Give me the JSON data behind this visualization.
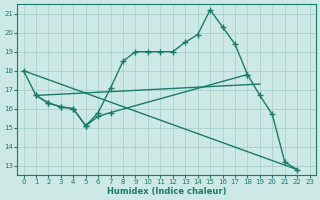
{
  "xlabel": "Humidex (Indice chaleur)",
  "bg_color": "#cce9e5",
  "line_color": "#1a7a6e",
  "grid_color": "#b8d8d4",
  "xlim": [
    -0.5,
    23.5
  ],
  "ylim": [
    12.5,
    21.5
  ],
  "yticks": [
    13,
    14,
    15,
    16,
    17,
    18,
    19,
    20,
    21
  ],
  "xticks": [
    0,
    1,
    2,
    3,
    4,
    5,
    6,
    7,
    8,
    9,
    10,
    11,
    12,
    13,
    14,
    15,
    16,
    17,
    18,
    19,
    20,
    21,
    22,
    23
  ],
  "curve1_x": [
    0,
    1,
    2,
    3,
    4,
    5,
    6,
    7,
    8,
    9,
    10,
    11,
    12,
    13,
    14,
    15,
    16,
    17,
    18,
    19,
    20,
    21,
    22
  ],
  "curve1_y": [
    18.0,
    16.7,
    16.3,
    16.1,
    16.0,
    15.1,
    15.8,
    17.1,
    18.5,
    19.0,
    19.0,
    19.0,
    19.0,
    19.5,
    19.9,
    21.2,
    20.3,
    19.4,
    17.8,
    16.7,
    15.7,
    13.2,
    12.8
  ],
  "curve2_x": [
    1,
    2,
    3,
    4,
    5,
    6,
    7,
    18
  ],
  "curve2_y": [
    16.7,
    16.3,
    16.1,
    16.0,
    15.1,
    15.6,
    15.8,
    17.8
  ],
  "line3_x": [
    1,
    19
  ],
  "line3_y": [
    16.7,
    17.3
  ],
  "line4_x": [
    0,
    22
  ],
  "line4_y": [
    18.0,
    12.8
  ]
}
